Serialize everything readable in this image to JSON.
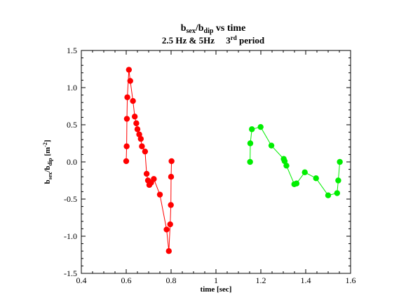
{
  "chart_data": {
    "type": "scatter",
    "title_parts": {
      "line1_main1": "b",
      "line1_sub1": "sex",
      "line1_sep": "/b",
      "line1_sub2": "dip",
      "line1_rest": " vs time",
      "line2_main": "2.5 Hz & 5Hz     3",
      "line2_sup": "rd",
      "line2_rest": " period"
    },
    "xlabel": "time [sec]",
    "ylabel_parts": {
      "p1": "b",
      "s1": "sex",
      "p2": "/b",
      "s2": "dip",
      "p3": " [m",
      "sup": "-2",
      "p4": "]"
    },
    "xlim": [
      0.4,
      1.6
    ],
    "ylim": [
      -1.5,
      1.5
    ],
    "xticks": [
      0.4,
      0.6,
      0.8,
      1,
      1.2,
      1.4,
      1.6
    ],
    "xtick_labels": [
      "0.4",
      "0.6",
      "0.8",
      "1",
      "1.2",
      "1.4",
      "1.6"
    ],
    "yticks": [
      1.5,
      1.0,
      0.5,
      0.0,
      -0.5,
      -1.0,
      -1.5
    ],
    "ytick_labels": [
      "1.5",
      "1.0",
      "0.5",
      "0.0",
      "-0.5",
      "-1.0",
      "-1.5"
    ],
    "grid": false,
    "legend": "none",
    "series": [
      {
        "color": "#ff0000",
        "x": [
          0.6,
          0.602,
          0.603,
          0.605,
          0.612,
          0.618,
          0.63,
          0.638,
          0.645,
          0.65,
          0.658,
          0.665,
          0.67,
          0.684,
          0.691,
          0.697,
          0.703,
          0.711,
          0.723,
          0.75,
          0.78,
          0.79,
          0.796,
          0.799,
          0.8,
          0.802
        ],
        "y": [
          0.01,
          0.21,
          0.58,
          0.87,
          1.24,
          1.09,
          0.82,
          0.61,
          0.52,
          0.44,
          0.37,
          0.31,
          0.21,
          0.14,
          -0.16,
          -0.25,
          -0.31,
          -0.28,
          -0.23,
          -0.44,
          -0.91,
          -1.2,
          -0.84,
          -0.58,
          -0.2,
          0.01
        ]
      },
      {
        "color": "#00ee00",
        "x": [
          1.152,
          1.153,
          1.16,
          1.199,
          1.247,
          1.302,
          1.306,
          1.314,
          1.349,
          1.359,
          1.396,
          1.446,
          1.5,
          1.54,
          1.545,
          1.552
        ],
        "y": [
          0.0,
          0.25,
          0.44,
          0.47,
          0.22,
          0.04,
          0.01,
          -0.05,
          -0.3,
          -0.29,
          -0.14,
          -0.22,
          -0.45,
          -0.42,
          -0.25,
          0.0
        ]
      }
    ]
  }
}
